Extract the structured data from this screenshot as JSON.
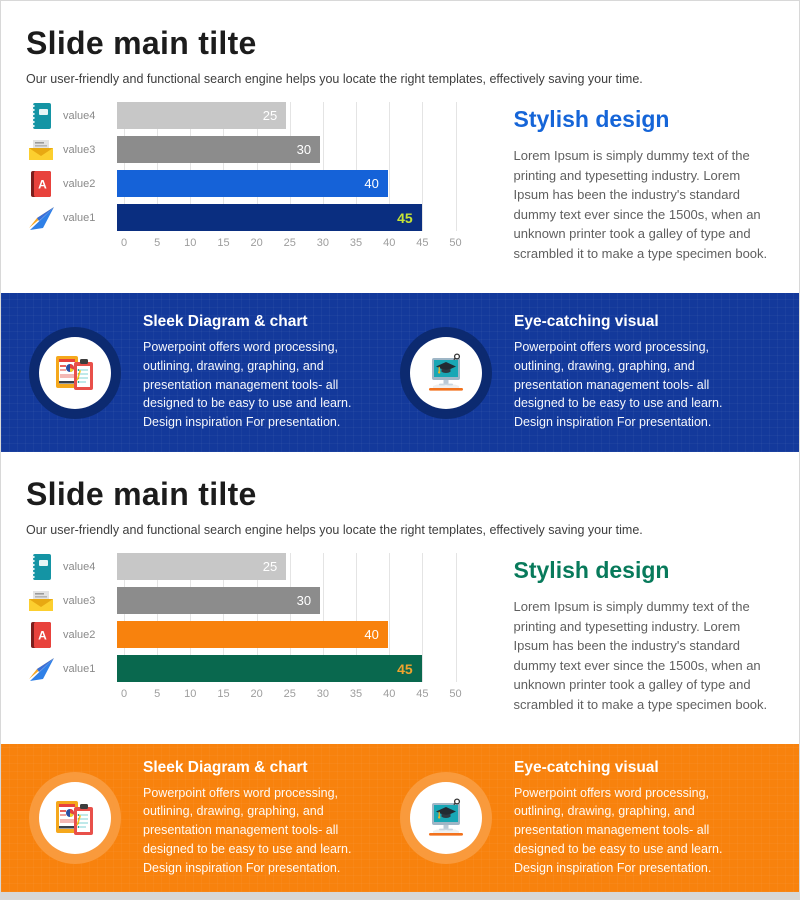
{
  "slides": [
    {
      "title": "Slide main tilte",
      "subtitle": "Our user-friendly and functional search engine helps you locate the right templates, effectively saving your time.",
      "stylish": {
        "heading": "Stylish design",
        "heading_color": "#1565d8",
        "body": "Lorem Ipsum is simply dummy text of the printing and typesetting industry. Lorem Ipsum has been the industry's standard dummy text ever since the 1500s, when an unknown printer took a galley of type and scrambled it to make a type specimen book."
      },
      "band": {
        "bg": "#13399b",
        "ring": "#0c2a70",
        "features": [
          {
            "icon": "clipboard-report-icon",
            "heading": "Sleek Diagram & chart",
            "body": "Powerpoint offers word processing, outlining, drawing, graphing, and presentation management tools- all designed to be easy to use and learn.",
            "body2": "Design inspiration For presentation."
          },
          {
            "icon": "monitor-graduation-icon",
            "heading": "Eye-catching visual",
            "body": "Powerpoint offers word processing, outlining, drawing, graphing, and presentation management tools- all designed to be easy to use and learn.",
            "body2": "Design inspiration For presentation."
          }
        ]
      }
    },
    {
      "title": "Slide main tilte",
      "subtitle": "Our user-friendly and functional search engine helps you locate the right templates, effectively saving your time.",
      "stylish": {
        "heading": "Stylish design",
        "heading_color": "#087a5b",
        "body": "Lorem Ipsum is simply dummy text of the printing and typesetting industry. Lorem Ipsum has been the industry's standard dummy text ever since the 1500s, when an unknown printer took a galley of type and scrambled it to make a type specimen book."
      },
      "band": {
        "bg": "#f8820d",
        "ring": "#f99a3c",
        "features": [
          {
            "icon": "clipboard-report-icon",
            "heading": "Sleek Diagram & chart",
            "body": "Powerpoint offers word processing, outlining, drawing, graphing, and presentation management tools- all designed to be easy to use and learn.",
            "body2": "Design inspiration For presentation."
          },
          {
            "icon": "monitor-graduation-icon",
            "heading": "Eye-catching visual",
            "body": "Powerpoint offers word processing, outlining, drawing, graphing, and presentation management tools- all designed to be easy to use and learn.",
            "body2": "Design inspiration For presentation."
          }
        ]
      }
    }
  ],
  "chart_data": [
    {
      "type": "bar",
      "orientation": "horizontal",
      "title": "",
      "xlabel": "",
      "ylabel": "",
      "categories": [
        "value4",
        "value3",
        "value2",
        "value1"
      ],
      "values": [
        25,
        30,
        40,
        45
      ],
      "bar_colors": [
        "#c7c7c7",
        "#8c8c8c",
        "#1562d8",
        "#0a2e80"
      ],
      "value_label_colors": [
        "#ffffff",
        "#ffffff",
        "#ffffff",
        "#c7e435"
      ],
      "category_icons": [
        "notebook-icon",
        "envelope-icon",
        "book-icon",
        "paper-plane-icon"
      ],
      "xlim": [
        0,
        50
      ],
      "xticks": [
        0,
        5,
        10,
        15,
        20,
        25,
        30,
        35,
        40,
        45,
        50
      ],
      "grid": true,
      "legend": "none"
    },
    {
      "type": "bar",
      "orientation": "horizontal",
      "title": "",
      "xlabel": "",
      "ylabel": "",
      "categories": [
        "value4",
        "value3",
        "value2",
        "value1"
      ],
      "values": [
        25,
        30,
        40,
        45
      ],
      "bar_colors": [
        "#c7c7c7",
        "#8c8c8c",
        "#f8820d",
        "#09684e"
      ],
      "value_label_colors": [
        "#ffffff",
        "#ffffff",
        "#ffffff",
        "#f0a32e"
      ],
      "category_icons": [
        "notebook-icon",
        "envelope-icon",
        "book-icon",
        "paper-plane-icon"
      ],
      "xlim": [
        0,
        50
      ],
      "xticks": [
        0,
        5,
        10,
        15,
        20,
        25,
        30,
        35,
        40,
        45,
        50
      ],
      "grid": true,
      "legend": "none"
    }
  ]
}
